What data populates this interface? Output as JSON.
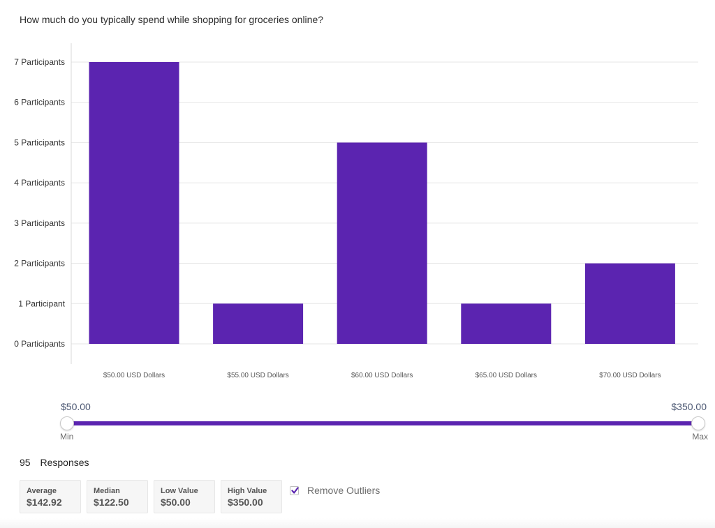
{
  "question": "How much do you typically spend while shopping for groceries online?",
  "colors": {
    "bar": "#5b24b0",
    "grid": "#e6e6e6",
    "axis": "#d8d8d8"
  },
  "chart_data": {
    "type": "bar",
    "title": "",
    "xlabel": "",
    "ylabel": "",
    "categories": [
      "$50.00 USD Dollars",
      "$55.00 USD Dollars",
      "$60.00 USD Dollars",
      "$65.00 USD Dollars",
      "$70.00 USD Dollars"
    ],
    "values": [
      7,
      1,
      5,
      1,
      2
    ],
    "ylim": [
      0,
      7
    ],
    "y_tick_labels": [
      "0 Participants",
      "1 Participant",
      "2 Participants",
      "3 Participants",
      "4 Participants",
      "5 Participants",
      "6 Participants",
      "7 Participants"
    ],
    "grid": true
  },
  "slider": {
    "min_value": "$50.00",
    "max_value": "$350.00",
    "min_label": "Min",
    "max_label": "Max"
  },
  "responses": {
    "count": "95",
    "label": "Responses"
  },
  "stats": [
    {
      "label": "Average",
      "value": "$142.92"
    },
    {
      "label": "Median",
      "value": "$122.50"
    },
    {
      "label": "Low Value",
      "value": "$50.00"
    },
    {
      "label": "High Value",
      "value": "$350.00"
    }
  ],
  "remove_outliers": {
    "label": "Remove Outliers",
    "checked": true
  }
}
